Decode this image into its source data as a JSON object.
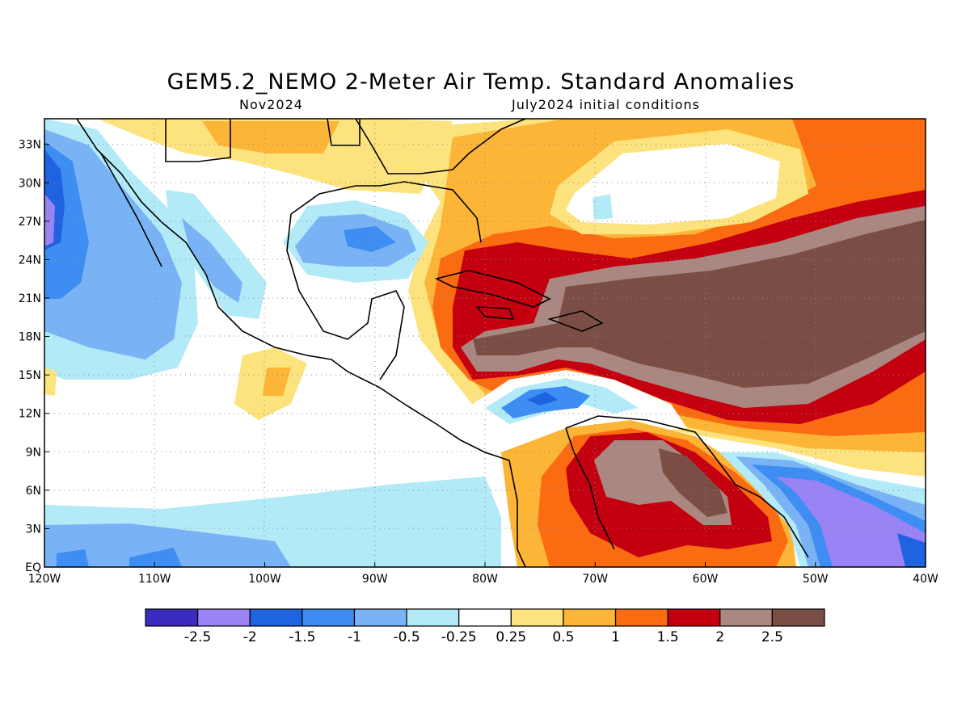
{
  "title": "GEM5.2_NEMO 2-Meter Air Temp. Standard Anomalies",
  "subtitle_left": "Nov2024",
  "subtitle_right": "July2024 initial conditions",
  "map": {
    "lon_range": [
      -120,
      -40
    ],
    "lat_range": [
      0,
      35
    ],
    "lat_ticks": [
      "EQ",
      "3N",
      "6N",
      "9N",
      "12N",
      "15N",
      "18N",
      "21N",
      "24N",
      "27N",
      "30N",
      "33N"
    ],
    "lon_ticks": [
      "120W",
      "110W",
      "100W",
      "90W",
      "80W",
      "70W",
      "60W",
      "50W",
      "40W"
    ],
    "gridlines": "dotted"
  },
  "colorbar": {
    "colors": [
      "#3b2cc0",
      "#9a84f5",
      "#1f63e0",
      "#3d8df2",
      "#79b3f5",
      "#b3eaf7",
      "#ffffff",
      "#fde37d",
      "#fcb536",
      "#fb6b12",
      "#c40010",
      "#ab8781",
      "#7a4e45"
    ],
    "labels": [
      "-2.5",
      "-2",
      "-1.5",
      "-1",
      "-0.5",
      "-0.25",
      "0.25",
      "0.5",
      "1",
      "1.5",
      "2",
      "2.5"
    ]
  }
}
